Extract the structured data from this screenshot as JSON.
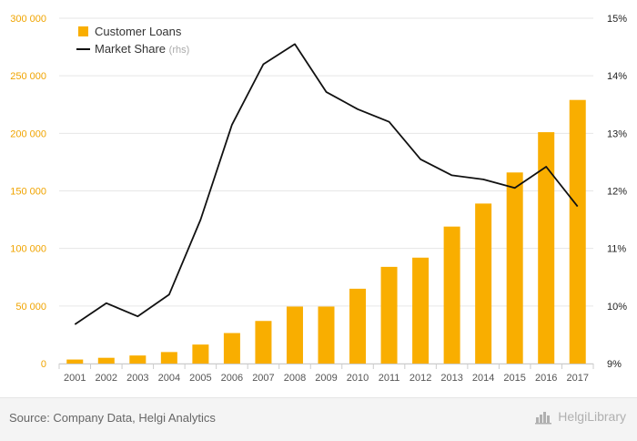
{
  "chart_data": {
    "type": "bar",
    "categories": [
      "2001",
      "2002",
      "2003",
      "2004",
      "2005",
      "2006",
      "2007",
      "2008",
      "2009",
      "2010",
      "2011",
      "2012",
      "2013",
      "2014",
      "2015",
      "2016",
      "2017"
    ],
    "series": [
      {
        "name": "Customer Loans",
        "type": "bar",
        "axis": "left",
        "values": [
          3500,
          5000,
          7000,
          10000,
          16500,
          26500,
          37000,
          49500,
          49500,
          65000,
          84000,
          92000,
          119000,
          139000,
          166000,
          201000,
          229000
        ]
      },
      {
        "name": "Market Share",
        "name_suffix": "(rhs)",
        "type": "line",
        "axis": "right",
        "values": [
          9.68,
          10.05,
          9.82,
          10.2,
          11.5,
          13.15,
          14.2,
          14.55,
          13.72,
          13.42,
          13.2,
          12.55,
          12.27,
          12.2,
          12.05,
          12.42,
          11.73
        ]
      }
    ],
    "y_left": {
      "lim": [
        0,
        300000
      ],
      "ticks": [
        0,
        50000,
        100000,
        150000,
        200000,
        250000,
        300000
      ],
      "tick_labels": [
        "0",
        "50 000",
        "100 000",
        "150 000",
        "200 000",
        "250 000",
        "300 000"
      ]
    },
    "y_right": {
      "lim": [
        9,
        15
      ],
      "ticks": [
        9,
        10,
        11,
        12,
        13,
        14,
        15
      ],
      "tick_labels": [
        "9%",
        "10%",
        "11%",
        "12%",
        "13%",
        "14%",
        "15%"
      ]
    },
    "legend_position": "top-left",
    "grid": true,
    "colors": {
      "bar": "#f9ae00",
      "line": "#111111",
      "left_axis_text": "#f0a400",
      "right_axis_text": "#222222",
      "grid": "#e6e6e6"
    }
  },
  "footer": {
    "source": "Source: Company Data, Helgi Analytics",
    "brand": "HelgiLibrary",
    "brand_icon": "helgi-library-logo-icon"
  }
}
